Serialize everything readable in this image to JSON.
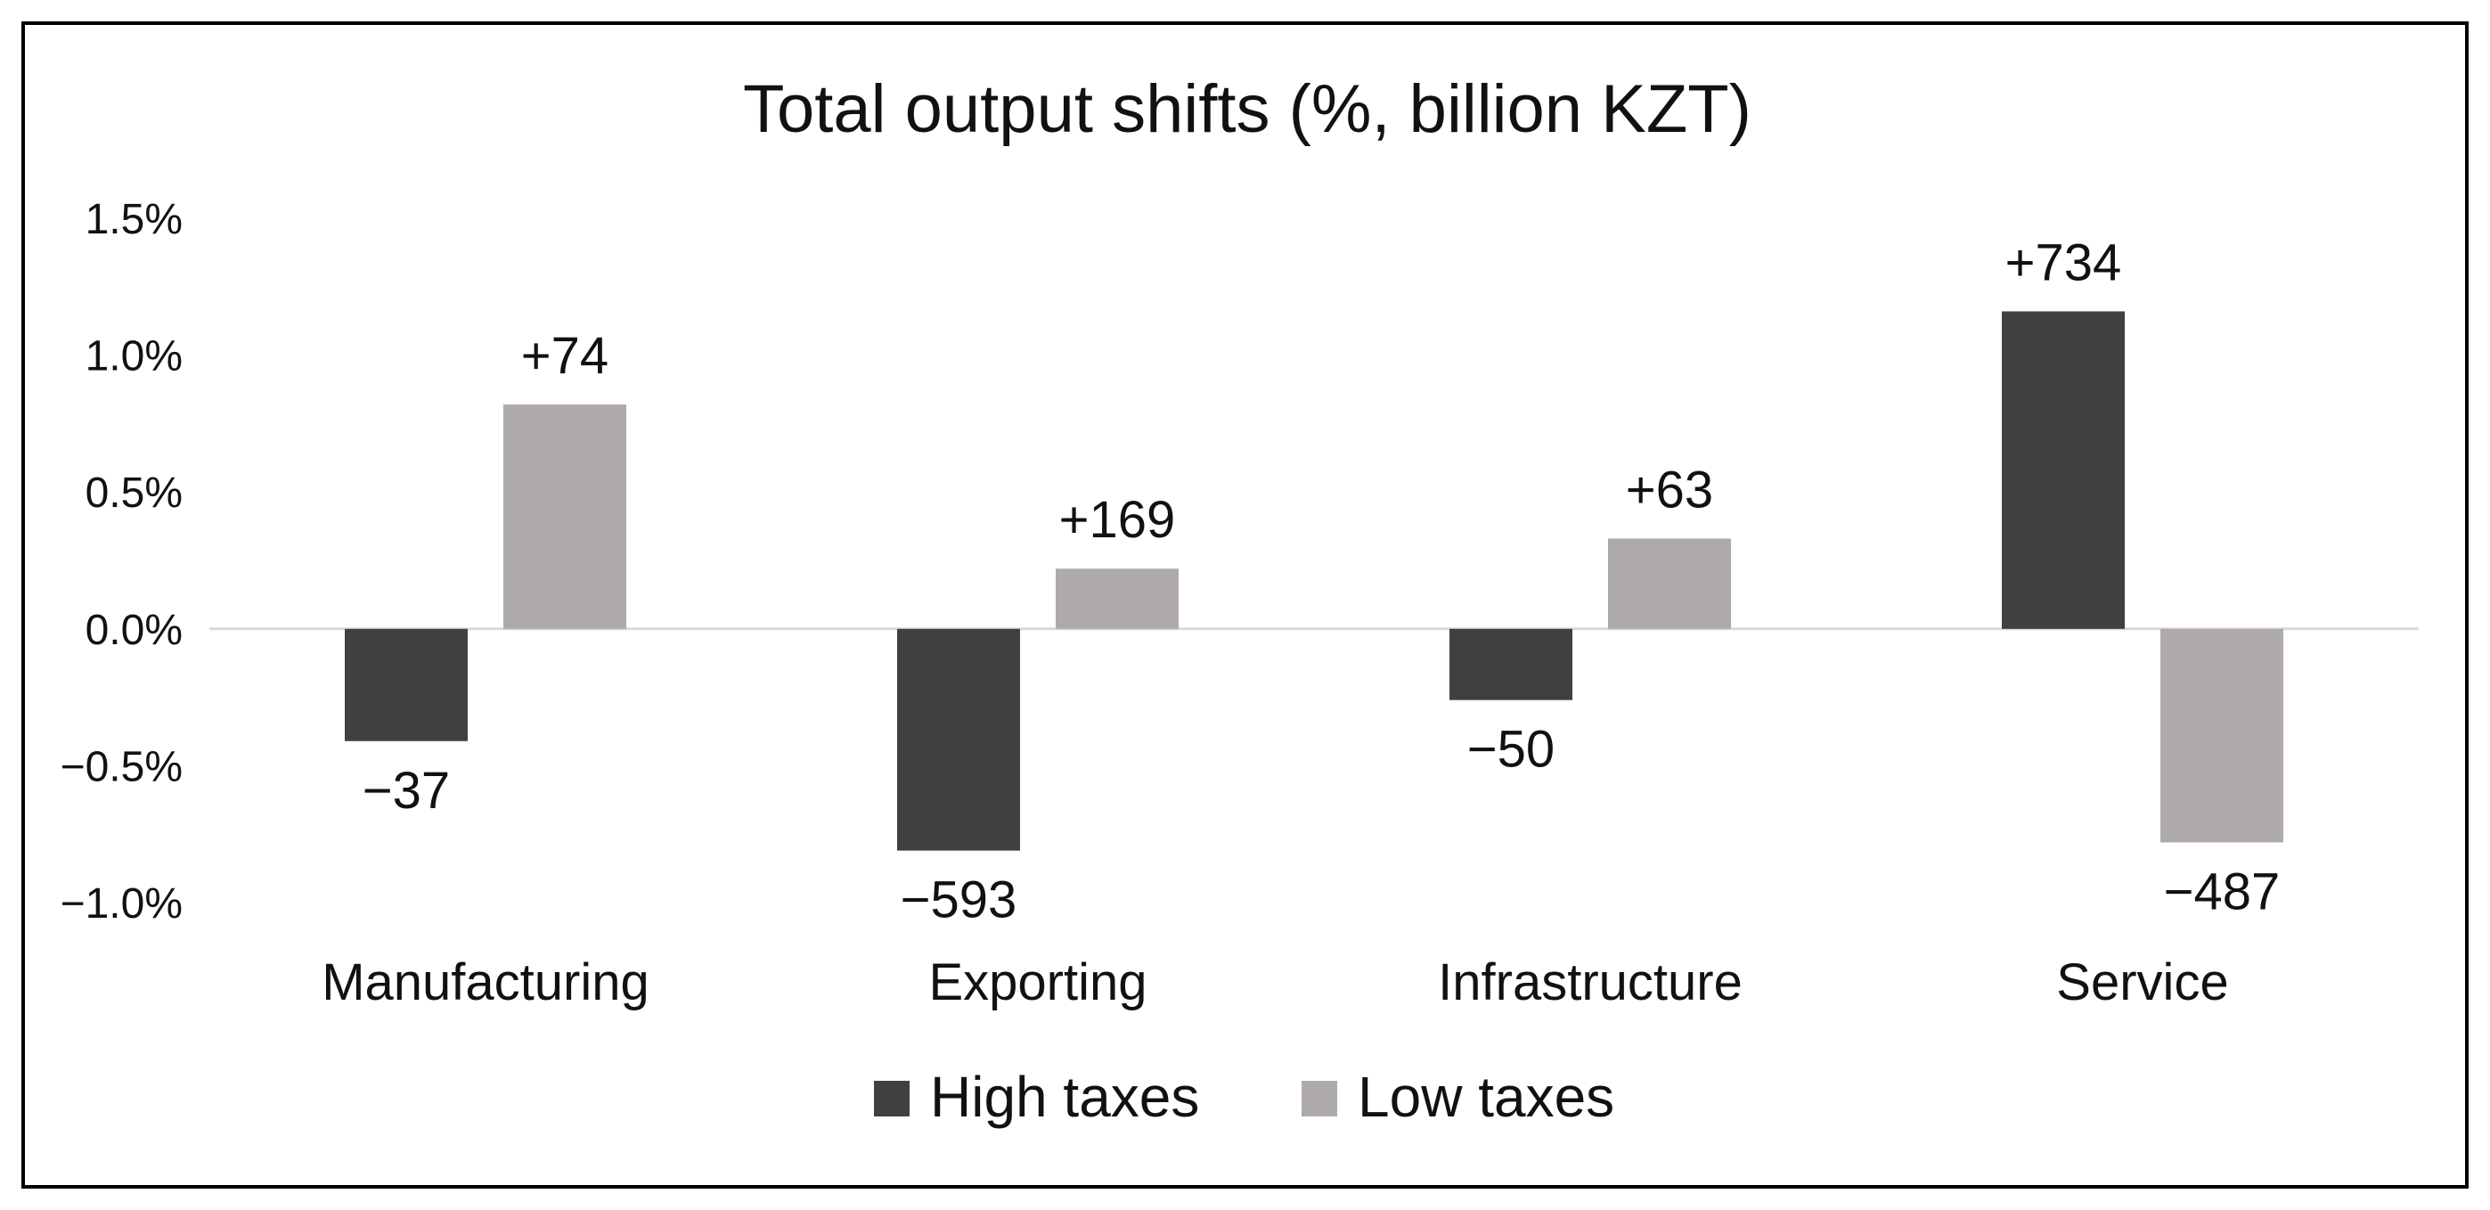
{
  "chart_data": {
    "type": "bar",
    "title": "Total output shifts (%, billion KZT)",
    "xlabel": "",
    "ylabel": "",
    "categories": [
      "Manufacturing",
      "Exporting",
      "Infrastructure",
      "Service"
    ],
    "series": [
      {
        "name": "High taxes",
        "color": "#404040",
        "values": [
          -0.41,
          -0.81,
          -0.26,
          1.16
        ],
        "labels": [
          "−37",
          "−593",
          "−50",
          "+734"
        ]
      },
      {
        "name": "Low taxes",
        "color": "#aeaaaa",
        "values": [
          0.82,
          0.22,
          0.33,
          -0.78
        ],
        "labels": [
          "+74",
          "+169",
          "+63",
          "−487"
        ]
      }
    ],
    "ylim": [
      -1.0,
      1.5
    ],
    "yticks": [
      1.5,
      1.0,
      0.5,
      0.0,
      -0.5,
      -1.0
    ],
    "ytick_labels": [
      "1.5%",
      "1.0%",
      "0.5%",
      "0.0%",
      "−0.5%",
      "−1.0%"
    ],
    "grid": false,
    "legend_position": "bottom"
  }
}
